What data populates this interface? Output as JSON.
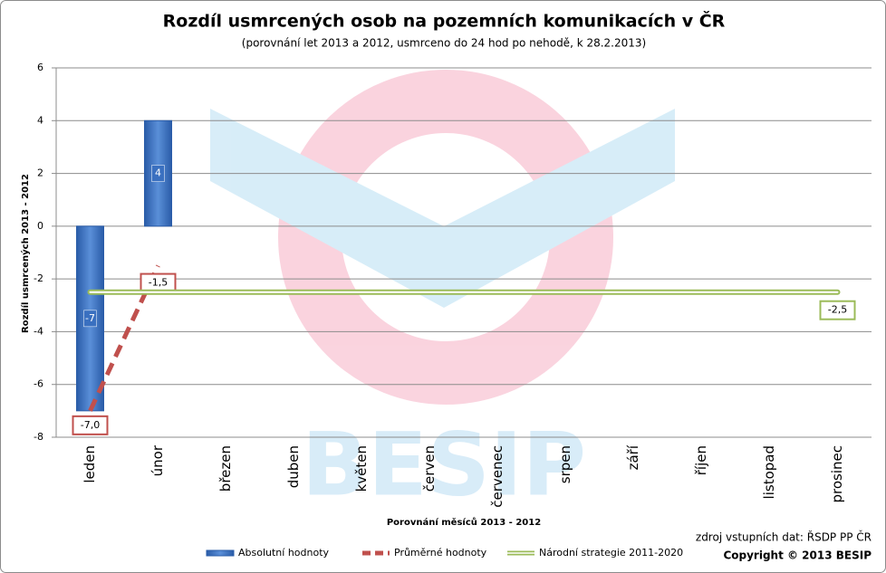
{
  "chart_data": {
    "type": "bar",
    "title": "Rozdíl usmrcených osob na pozemních komunikacích v ČR",
    "subtitle": "(porovnání let 2013 a 2012, usmrceno do 24 hod po nehodě, k 28.2.2013)",
    "y_label": "Rozdíl usmrcených  2013 - 2012",
    "x_label": "Porovnání  měsíců  2013 - 2012",
    "source": "zdroj vstupních dat: ŘSDP PP ČR",
    "copyright": "Copyright © 2013  BESIP",
    "watermark": "BESIP",
    "categories": [
      "leden",
      "únor",
      "březen",
      "duben",
      "květen",
      "červen",
      "červenec",
      "srpen",
      "září",
      "říjen",
      "listopad",
      "prosinec"
    ],
    "ylim": [
      -8,
      6
    ],
    "yticks": [
      -8,
      -6,
      -4,
      -2,
      0,
      2,
      4,
      6
    ],
    "grid": true,
    "legend": "bottom",
    "series": [
      {
        "name": "Absolutní hodnoty",
        "type": "bar",
        "color": "#3a70c0",
        "values": [
          -7,
          4,
          null,
          null,
          null,
          null,
          null,
          null,
          null,
          null,
          null,
          null
        ]
      },
      {
        "name": "Průměrné hodnoty",
        "type": "line",
        "style": "dashed",
        "color": "#c0504d",
        "values": [
          -7,
          -1.5,
          null,
          null,
          null,
          null,
          null,
          null,
          null,
          null,
          null,
          null
        ],
        "value_labels": [
          "-7,0",
          "-1,5",
          null,
          null,
          null,
          null,
          null,
          null,
          null,
          null,
          null,
          null
        ]
      },
      {
        "name": "Národní strategie 2011-2020",
        "type": "line",
        "color": "#9bbb59",
        "values": [
          -2.5,
          -2.5,
          -2.5,
          -2.5,
          -2.5,
          -2.5,
          -2.5,
          -2.5,
          -2.5,
          -2.5,
          -2.5,
          -2.5
        ],
        "value_labels": [
          null,
          null,
          null,
          null,
          null,
          null,
          null,
          null,
          null,
          null,
          null,
          "-2,5"
        ]
      }
    ]
  }
}
